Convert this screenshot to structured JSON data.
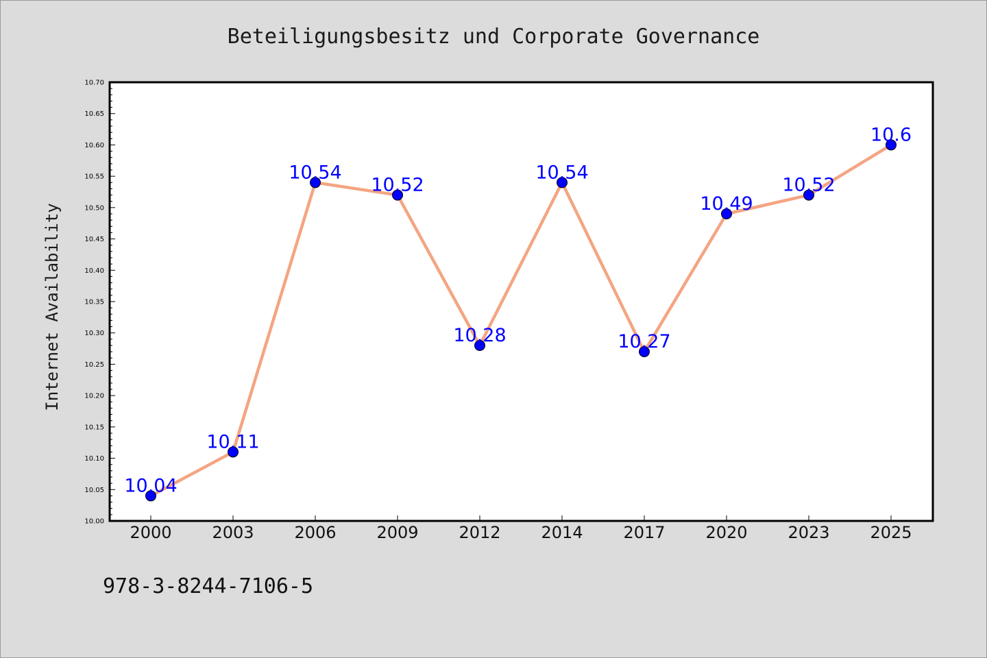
{
  "chart_data": {
    "type": "line",
    "title": "Beteiligungsbesitz und Corporate Governance",
    "xlabel": "",
    "ylabel": "Internet Availability",
    "categories": [
      "2000",
      "2003",
      "2006",
      "2009",
      "2012",
      "2014",
      "2017",
      "2020",
      "2023",
      "2025"
    ],
    "series": [
      {
        "values": [
          10.04,
          10.11,
          10.54,
          10.52,
          10.28,
          10.54,
          10.27,
          10.49,
          10.52,
          10.6
        ],
        "data_labels": [
          "10.04",
          "10.11",
          "10.54",
          "10.52",
          "10.28",
          "10.54",
          "10.27",
          "10.49",
          "10.52",
          "10.6"
        ]
      }
    ],
    "ylim": [
      10.0,
      10.7
    ],
    "yticks": [
      "10.00",
      "10.05",
      "10.10",
      "10.15",
      "10.20",
      "10.25",
      "10.30",
      "10.35",
      "10.40",
      "10.45",
      "10.50",
      "10.55",
      "10.60",
      "10.65",
      "10.70"
    ],
    "grid": false,
    "legend": "none",
    "colors": {
      "line": "#f4a582",
      "marker": "#0000ff",
      "data_label": "#0000ff",
      "background": "#dcdcdc",
      "plot_background": "#ffffff"
    }
  },
  "footer": {
    "isbn": "978-3-8244-7106-5"
  }
}
